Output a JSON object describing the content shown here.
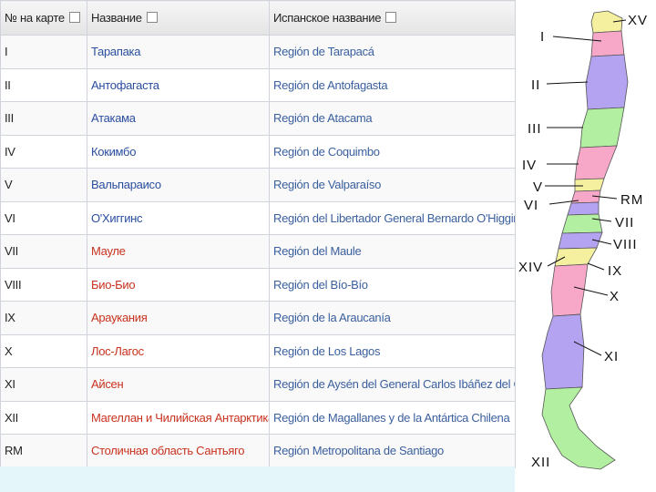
{
  "table": {
    "header": [
      "№ на карте",
      "Название",
      "Испанское название"
    ],
    "rows": [
      [
        "I",
        "Тарапака",
        "Región de Tarapacá"
      ],
      [
        "II",
        "Антофагаста",
        "Región de Antofagasta"
      ],
      [
        "III",
        "Атакама",
        "Región de Atacama"
      ],
      [
        "IV",
        "Кокимбо",
        "Región de Coquimbo"
      ],
      [
        "V",
        "Вальпараисо",
        "Región de Valparaíso"
      ],
      [
        "VI",
        "О'Хиггинс",
        "Región del Libertador General Bernardo O'Higgins"
      ],
      [
        "VII",
        "Мауле",
        "Región del Maule"
      ],
      [
        "VIII",
        "Био-Био",
        "Región del Bío-Bío"
      ],
      [
        "IX",
        "Араукания",
        "Región de la Araucanía"
      ],
      [
        "X",
        "Лос-Лагос",
        "Región de Los Lagos"
      ],
      [
        "XI",
        "Айсен",
        "Región de Aysén del General Carlos Ibáñez del C"
      ],
      [
        "XII",
        "Магеллан и Чилийская Антарктика",
        "Región de Magallanes y de la Antártica Chilena"
      ],
      [
        "RM",
        "Столичная область Сантьяго",
        "Región Metropolitana de Santiago"
      ]
    ]
  },
  "map": {
    "labels": [
      "XV",
      "I",
      "II",
      "III",
      "IV",
      "V",
      "VI",
      "RM",
      "VII",
      "VIII",
      "XIV",
      "IX",
      "X",
      "XI",
      "XII"
    ]
  }
}
